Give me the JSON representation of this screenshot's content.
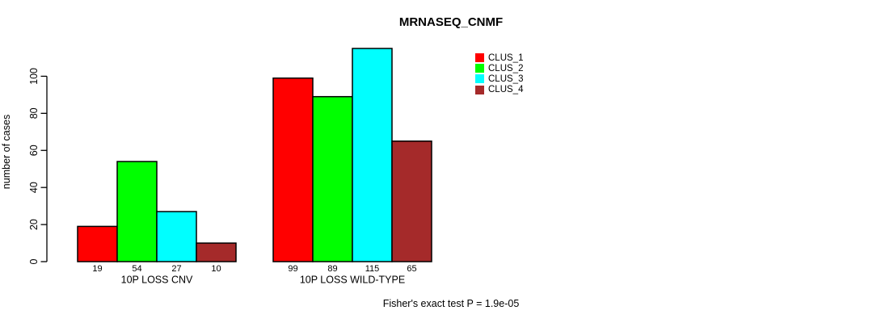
{
  "chart_data": {
    "type": "bar",
    "title": "MRNASEQ_CNMF",
    "xlabel": "",
    "ylabel": "number of cases",
    "categories": [
      "10P LOSS CNV",
      "10P LOSS WILD-TYPE"
    ],
    "series": [
      {
        "name": "CLUS_1",
        "color": "#ff0000",
        "values": [
          19,
          99
        ]
      },
      {
        "name": "CLUS_2",
        "color": "#00ff00",
        "values": [
          54,
          89
        ]
      },
      {
        "name": "CLUS_3",
        "color": "#00ffff",
        "values": [
          27,
          115
        ]
      },
      {
        "name": "CLUS_4",
        "color": "#a52a2a",
        "values": [
          10,
          65
        ]
      }
    ],
    "bar_value_labels": [
      [
        19,
        54,
        27,
        10
      ],
      [
        99,
        89,
        115,
        65
      ]
    ],
    "yticks": [
      0,
      20,
      40,
      60,
      80,
      100
    ],
    "ylim": [
      0,
      115
    ],
    "grid": false,
    "legend": {
      "position": "top-right"
    },
    "annotation": "Fisher's exact test P = 1.9e-05",
    "colors": {
      "background": "#ffffff",
      "axis": "#000000",
      "bar_border": "#000000",
      "text": "#000000"
    }
  }
}
